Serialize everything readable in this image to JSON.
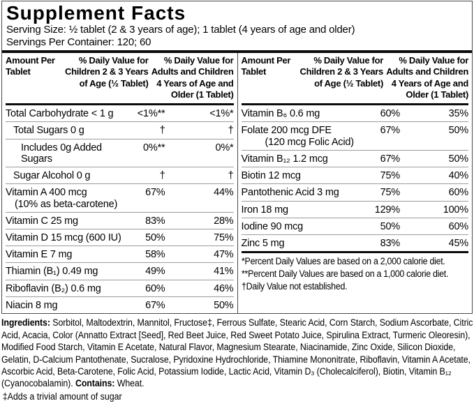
{
  "title": "Supplement Facts",
  "serving": {
    "size": "Serving Size: ½ tablet (2 & 3 years of age); 1 tablet (4 years of age and older)",
    "per_container": "Servings Per Container: 120; 60"
  },
  "column_header": {
    "amount": "Amount Per Tablet",
    "dv_children": "% Daily Value for Children 2 & 3 Years of Age (½ Tablet)",
    "dv_adults": "% Daily Value for Adults and Children 4 Years of Age and Older (1 Tablet)"
  },
  "table": {
    "left_rows": [
      {
        "name": "Total Carbohydrate < 1 g",
        "indent": 0,
        "dv_children": "<1%**",
        "dv_adults": "<1%*"
      },
      {
        "name": "Total Sugars 0 g",
        "indent": 1,
        "dv_children": "†",
        "dv_adults": "†"
      },
      {
        "name": "Includes 0g Added Sugars",
        "indent": 2,
        "dv_children": "0%**",
        "dv_adults": "0%*"
      },
      {
        "name": "Sugar Alcohol 0 g",
        "indent": 1,
        "dv_children": "†",
        "dv_adults": "†"
      },
      {
        "name": "Vitamin A 400 mcg",
        "name2": "(10% as beta-carotene)",
        "indent": 0,
        "indent2": 13,
        "dv_children": "67%",
        "dv_adults": "44%"
      },
      {
        "name": "Vitamin C 25 mg",
        "indent": 0,
        "dv_children": "83%",
        "dv_adults": "28%"
      },
      {
        "name": "Vitamin D 15 mcg (600 IU)",
        "indent": 0,
        "dv_children": "50%",
        "dv_adults": "75%"
      },
      {
        "name": "Vitamin E 7 mg",
        "indent": 0,
        "dv_children": "58%",
        "dv_adults": "47%"
      },
      {
        "name": "Thiamin (B₁) 0.49 mg",
        "indent": 0,
        "dv_children": "49%",
        "dv_adults": "41%"
      },
      {
        "name": "Riboflavin (B₂) 0.6 mg",
        "indent": 0,
        "dv_children": "60%",
        "dv_adults": "46%"
      },
      {
        "name": "Niacin 8 mg",
        "indent": 0,
        "dv_children": "67%",
        "dv_adults": "50%"
      }
    ],
    "right_rows": [
      {
        "name": "Vitamin B₆ 0.6 mg",
        "indent": 0,
        "dv_children": "60%",
        "dv_adults": "35%"
      },
      {
        "name": "Folate 200 mcg DFE",
        "name2": "(120 mcg Folic Acid)",
        "indent": 0,
        "indent2": 34,
        "dv_children": "67%",
        "dv_adults": "50%"
      },
      {
        "name": "Vitamin B₁₂ 1.2 mcg",
        "indent": 0,
        "dv_children": "67%",
        "dv_adults": "50%"
      },
      {
        "name": "Biotin 12 mcg",
        "indent": 0,
        "dv_children": "75%",
        "dv_adults": "40%"
      },
      {
        "name": "Pantothenic Acid 3 mg",
        "indent": 0,
        "dv_children": "75%",
        "dv_adults": "60%"
      },
      {
        "name": "Iron 18 mg",
        "indent": 0,
        "dv_children": "129%",
        "dv_adults": "100%"
      },
      {
        "name": "Iodine 90 mcg",
        "indent": 0,
        "dv_children": "50%",
        "dv_adults": "60%"
      },
      {
        "name": "Zinc 5 mg",
        "indent": 0,
        "dv_children": "83%",
        "dv_adults": "45%"
      }
    ],
    "footnotes": [
      "*Percent Daily Values are based on a 2,000 calorie diet.",
      "**Percent Daily Values are based on a 1,000 calorie diet.",
      "†Daily Value not established."
    ]
  },
  "ingredients": {
    "label": "Ingredients:",
    "text": " Sorbitol, Maltodextrin, Mannitol, Fructose‡, Ferrous Sulfate, Stearic Acid, Corn Starch, Sodium Ascorbate, Citric Acid, Acacia, Color (Annatto Extract [Seed], Red Beet Juice, Red Sweet Potato Juice, Spirulina Extract, Turmeric Oleoresin), Modified Food Starch, Vitamin E Acetate, Natural Flavor, Magnesium Stearate, Niacinamide, Zinc Oxide, Silicon Dioxide, Gelatin, D-Calcium Pantothenate, Sucralose, Pyridoxine Hydrochloride, Thiamine Mononitrate, Riboflavin, Vitamin A Acetate, Ascorbic Acid, Beta-Carotene, Folic Acid, Potassium Iodide, Lactic Acid, Vitamin D₃ (Cholecalciferol), Biotin, Vitamin B₁₂ (Cyanocobalamin). ",
    "contains_label": "Contains:",
    "contains_text": " Wheat.",
    "sugar_footnote": "‡Adds a trivial amount of sugar"
  }
}
